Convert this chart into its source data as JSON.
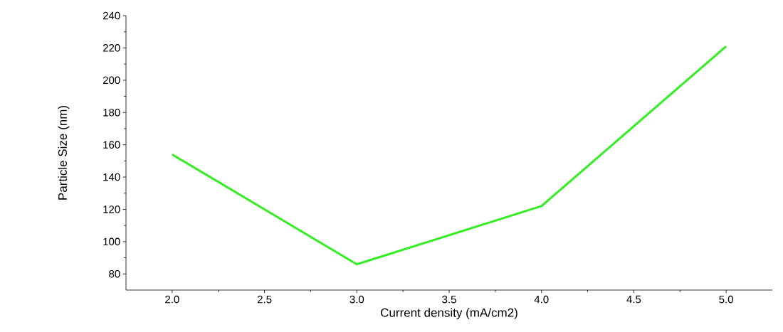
{
  "chart_data": {
    "type": "line",
    "xlabel": "Current density (mA/cm2)",
    "ylabel": "Particle Size (nm)",
    "x": [
      2.0,
      3.0,
      4.0,
      5.0
    ],
    "series": [
      {
        "color": "#33ee22",
        "values": [
          154,
          86,
          122,
          221
        ]
      }
    ],
    "xlim": [
      1.75,
      5.25
    ],
    "ylim": [
      70,
      240
    ],
    "xticks": [
      {
        "value": 2.0,
        "label": "2.0"
      },
      {
        "value": 2.5,
        "label": "2.5"
      },
      {
        "value": 3.0,
        "label": "3.0"
      },
      {
        "value": 3.5,
        "label": "3.5"
      },
      {
        "value": 4.0,
        "label": "4.0"
      },
      {
        "value": 4.5,
        "label": "4.5"
      },
      {
        "value": 5.0,
        "label": "5.0"
      }
    ],
    "yticks": [
      80,
      100,
      120,
      140,
      160,
      180,
      200,
      220,
      240
    ],
    "grid": false,
    "marker": "none",
    "line_style": "solid"
  }
}
